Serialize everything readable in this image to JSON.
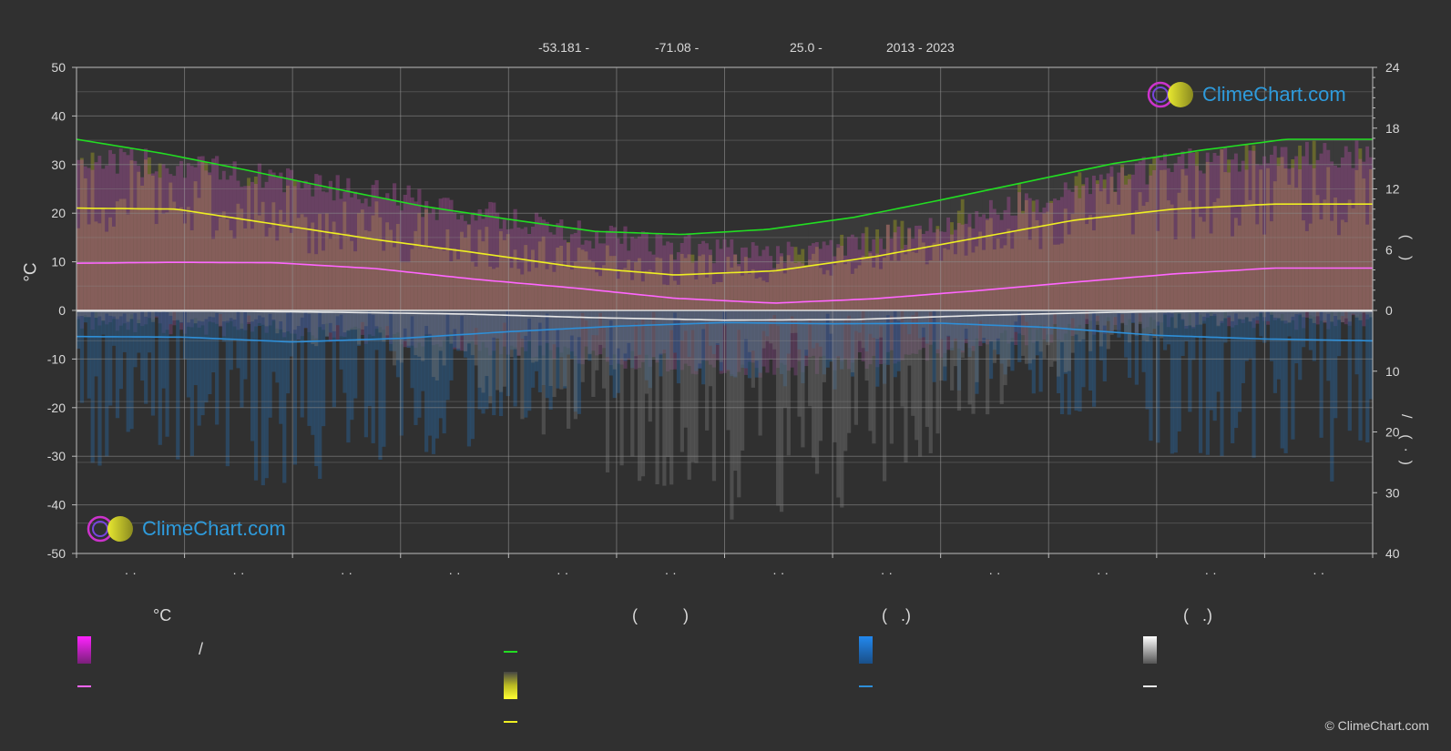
{
  "header": {
    "lat": "-53.181 -",
    "lon": "-71.08 -",
    "elev": "25.0 -",
    "years": "2013 - 2023"
  },
  "axis_titles": {
    "left": "°C",
    "right_upper": "(    )",
    "right_lower": "/    (  ·  )"
  },
  "legend": {
    "temp_title": "°C",
    "sun_title": "(          )",
    "rain_title": "(   .)",
    "snow_title": "(   .)",
    "slash_text": "/"
  },
  "logo_text": "ClimeChart.com",
  "copyright": "© ClimeChart.com",
  "colors": {
    "background": "#303030",
    "daylight": "#22dd22",
    "sunshine": "#eeee22",
    "temperature": "#ff66ff",
    "rain": "#2e8fd8",
    "snow": "#e8e8e8",
    "logo": "#2e9bdc"
  },
  "chart_data": {
    "type": "line",
    "x_count": 12,
    "x_tick_labels": [
      "· ·",
      "· ·",
      "· ·",
      "· ·",
      "· ·",
      "· ·",
      "· ·",
      "· ·",
      "· ·",
      "· ·",
      "· ·",
      "· ·"
    ],
    "y_left": {
      "label": "°C",
      "range": [
        -50,
        50
      ],
      "ticks": [
        50,
        40,
        30,
        20,
        10,
        0,
        -10,
        -20,
        -30,
        -40,
        -50
      ]
    },
    "y_right_upper": {
      "range": [
        0,
        24
      ],
      "ticks": [
        24,
        18,
        12,
        6,
        0
      ]
    },
    "y_right_lower": {
      "range": [
        0,
        40
      ],
      "ticks": [
        10,
        20,
        30,
        40
      ]
    },
    "grid": true,
    "series": [
      {
        "key": "daylight",
        "unit": "hours",
        "axis": "right_upper",
        "values": [
          16.9,
          15.5,
          13.8,
          12.0,
          10.3,
          9.0,
          7.8,
          7.5,
          8.0,
          9.2,
          10.9,
          12.7,
          14.5,
          15.8,
          16.9,
          16.9
        ]
      },
      {
        "key": "sunshine",
        "unit": "hours",
        "axis": "right_upper",
        "values": [
          10.1,
          10.0,
          8.5,
          7.0,
          5.7,
          4.3,
          3.5,
          3.9,
          5.3,
          7.1,
          8.9,
          10.0,
          10.5,
          10.5
        ]
      },
      {
        "key": "temp_mean",
        "unit": "°C",
        "axis": "left",
        "values": [
          9.7,
          9.9,
          9.8,
          8.6,
          6.4,
          4.6,
          2.5,
          1.5,
          2.4,
          4.0,
          5.8,
          7.5,
          8.7,
          8.7
        ]
      },
      {
        "key": "rain_mean",
        "unit": "mm",
        "axis": "right_lower",
        "values": [
          4.3,
          4.4,
          5.2,
          4.6,
          3.5,
          2.6,
          2.0,
          2.2,
          2.1,
          2.8,
          4.1,
          4.7,
          5.0
        ]
      },
      {
        "key": "snow_mean",
        "unit": "mm",
        "axis": "right_lower",
        "values": [
          0.1,
          0.1,
          0.3,
          0.6,
          1.2,
          1.6,
          1.5,
          0.8,
          0.3,
          0.1,
          0.1
        ]
      },
      {
        "key": "temp_band_max",
        "unit": "°C",
        "axis": "left",
        "values": [
          31,
          30,
          27,
          24,
          20,
          16,
          13,
          11,
          14,
          19,
          25,
          30,
          32,
          32
        ]
      },
      {
        "key": "temp_band_min",
        "unit": "°C",
        "axis": "left",
        "values": [
          -2,
          -3,
          -4,
          -5,
          -7,
          -9,
          -11,
          -12,
          -10,
          -7,
          -4,
          -2,
          -2,
          -2
        ]
      }
    ]
  }
}
